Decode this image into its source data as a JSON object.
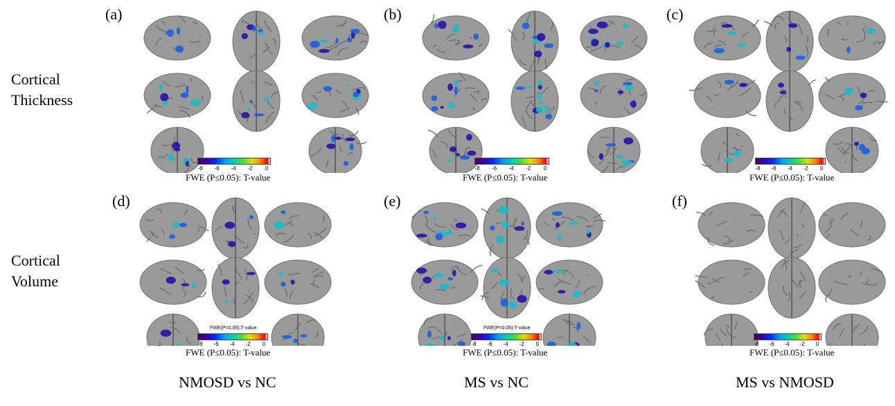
{
  "rows": [
    {
      "line1": "Cortical",
      "line2": "Thickness"
    },
    {
      "line1": "Cortical",
      "line2": "Volume"
    }
  ],
  "columns": [
    "NMOSD vs NC",
    "MS vs NC",
    "MS vs NMOSD"
  ],
  "panels": [
    {
      "letter": "(a)",
      "caption": "FWE (P≤0.05): T-value",
      "ticks": [
        "-8",
        "-6",
        "-4",
        "-2",
        "0"
      ],
      "mini_title": ""
    },
    {
      "letter": "(b)",
      "caption": "FWE (P≤0.05): T-value",
      "ticks": [
        "-8",
        "-6",
        "-4",
        "-2",
        "0"
      ],
      "mini_title": ""
    },
    {
      "letter": "(c)",
      "caption": "FWE (P≤0.05): T-value",
      "ticks": [
        "-8",
        "-6",
        "-4",
        "-2",
        "0"
      ],
      "mini_title": ""
    },
    {
      "letter": "(d)",
      "caption": "FWE (P≤0.05): T-value",
      "ticks": [
        "-8",
        "-6",
        "-4",
        "-2",
        "0"
      ],
      "mini_title": "FWE(P=0.05):T-value"
    },
    {
      "letter": "(e)",
      "caption": "FWE (P≤0.05): T-value",
      "ticks": [
        "-8",
        "-6",
        "-4",
        "-2",
        "0"
      ],
      "mini_title": "FWE(P=0.05):T-value"
    },
    {
      "letter": "(f)",
      "caption": "FWE (P≤0.05): T-value",
      "ticks": [
        "-8",
        "-6",
        "-4",
        "-2",
        "0"
      ],
      "mini_title": ""
    }
  ],
  "colors": {
    "brain": "#9a9a9a",
    "brain_dark": "#6e6e6e",
    "cluster_strong": "#2a10a8",
    "cluster_mid": "#1a60e0",
    "cluster_weak": "#20b8c8"
  },
  "colorbar_range": [
    -8,
    0
  ],
  "cluster_intensity": [
    {
      "panel": "(a)",
      "level": "moderate"
    },
    {
      "panel": "(b)",
      "level": "strong"
    },
    {
      "panel": "(c)",
      "level": "sparse"
    },
    {
      "panel": "(d)",
      "level": "sparse"
    },
    {
      "panel": "(e)",
      "level": "moderate"
    },
    {
      "panel": "(f)",
      "level": "none"
    }
  ]
}
